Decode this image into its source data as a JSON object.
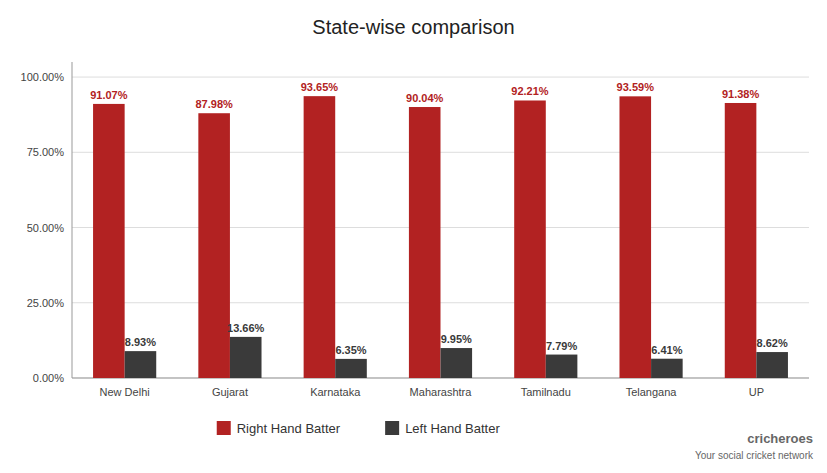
{
  "chart_data": {
    "type": "bar",
    "title": "State-wise comparison",
    "categories": [
      "New Delhi",
      "Gujarat",
      "Karnataka",
      "Maharashtra",
      "Tamilnadu",
      "Telangana",
      "UP"
    ],
    "series": [
      {
        "name": "Right Hand Batter",
        "color": "#B22222",
        "values": [
          91.07,
          87.98,
          93.65,
          90.04,
          92.21,
          93.59,
          91.38
        ],
        "value_labels": [
          "91.07%",
          "87.98%",
          "93.65%",
          "90.04%",
          "92.21%",
          "93.59%",
          "91.38%"
        ]
      },
      {
        "name": "Left Hand Batter",
        "color": "#3A3A3A",
        "values": [
          8.93,
          13.66,
          6.35,
          9.95,
          7.79,
          6.41,
          8.62
        ],
        "value_labels": [
          "8.93%",
          "13.66%",
          "6.35%",
          "9.95%",
          "7.79%",
          "6.41%",
          "8.62%"
        ]
      }
    ],
    "ylim": [
      0,
      105
    ],
    "yticks": [
      {
        "value": 0,
        "label": "0.00%"
      },
      {
        "value": 25,
        "label": "25.00%"
      },
      {
        "value": 50,
        "label": "50.00%"
      },
      {
        "value": 75,
        "label": "75.00%"
      },
      {
        "value": 100,
        "label": "100.00%"
      }
    ],
    "grid": true,
    "data_labels": true,
    "legend": "bottom",
    "annotations": [
      "cricheroes",
      "Your social cricket network"
    ]
  }
}
